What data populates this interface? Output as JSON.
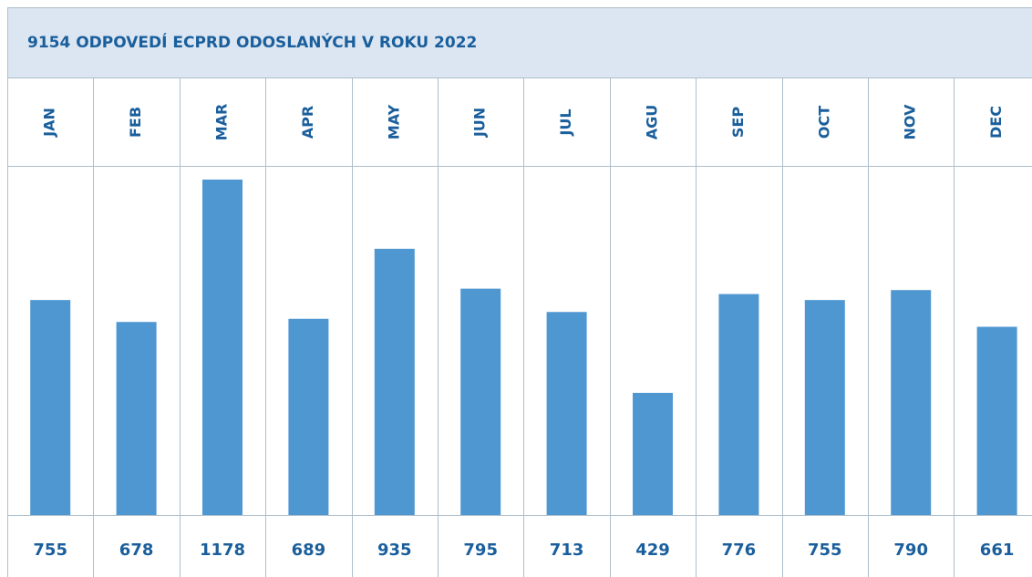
{
  "chart_data": {
    "type": "bar",
    "title": "9154 ODPOVEDÍ ECPRD ODOSLANÝCH V ROKU 2022",
    "categories": [
      "JAN",
      "FEB",
      "MAR",
      "APR",
      "MAY",
      "JUN",
      "JUL",
      "AGU",
      "SEP",
      "OCT",
      "NOV",
      "DEC"
    ],
    "values": [
      755,
      678,
      1178,
      689,
      935,
      795,
      713,
      429,
      776,
      755,
      790,
      661
    ],
    "color": "#4f97d1"
  }
}
